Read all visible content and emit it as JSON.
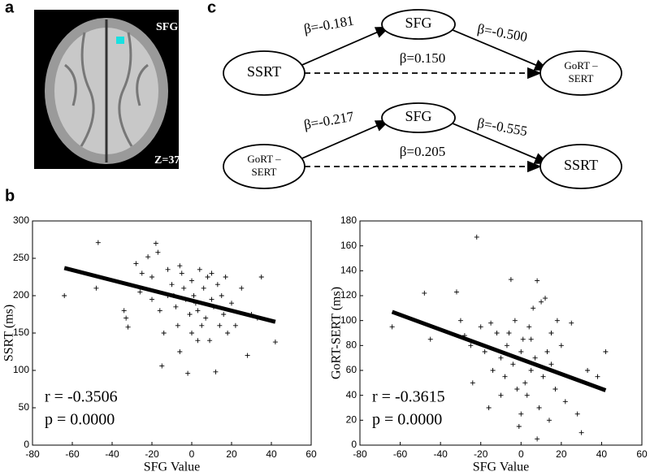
{
  "panel_labels": [
    "a",
    "b",
    "c"
  ],
  "brain": {
    "region": "SFG",
    "slice": "Z=37"
  },
  "diagrams": [
    {
      "nodes": [
        {
          "lines": [
            "SSRT"
          ]
        },
        {
          "lines": [
            "SFG"
          ]
        },
        {
          "lines": [
            "GoRT –",
            "SERT"
          ]
        }
      ],
      "edges": [
        "β=-0.181",
        "β=-0.500",
        "β=0.150"
      ]
    },
    {
      "nodes": [
        {
          "lines": [
            "GoRT –",
            "SERT"
          ]
        },
        {
          "lines": [
            "SFG"
          ]
        },
        {
          "lines": [
            "SSRT"
          ]
        }
      ],
      "edges": [
        "β=-0.217",
        "β=-0.555",
        "β=0.205"
      ]
    }
  ],
  "chart_data": [
    {
      "type": "scatter",
      "xlabel": "SFG Value",
      "ylabel": "SSRT (ms)",
      "color": "#000000",
      "xlim": [
        -80,
        60
      ],
      "ylim": [
        0,
        300
      ],
      "xticks": [
        -80,
        -60,
        -40,
        -20,
        0,
        20,
        40,
        60
      ],
      "yticks": [
        0,
        50,
        100,
        150,
        200,
        250,
        300
      ],
      "x": [
        -64,
        -47,
        -48,
        -34,
        -32,
        -33,
        -28,
        -25,
        -22,
        -20,
        -18,
        -17,
        -16,
        -15,
        -14,
        -12,
        -10,
        -9,
        -8,
        -7,
        -6,
        -5,
        -4,
        -3,
        -2,
        -1,
        0,
        0,
        1,
        2,
        3,
        4,
        5,
        6,
        7,
        8,
        9,
        10,
        11,
        12,
        13,
        14,
        15,
        16,
        18,
        20,
        22,
        25,
        28,
        30,
        33,
        35,
        42,
        -20,
        -26,
        -12,
        3,
        -6,
        10,
        17
      ],
      "values": [
        200,
        271,
        210,
        180,
        158,
        170,
        243,
        230,
        252,
        225,
        270,
        258,
        180,
        106,
        150,
        235,
        215,
        200,
        185,
        160,
        240,
        230,
        210,
        195,
        96,
        175,
        220,
        150,
        200,
        190,
        180,
        235,
        160,
        210,
        170,
        225,
        140,
        195,
        185,
        98,
        215,
        160,
        200,
        175,
        150,
        190,
        160,
        210,
        120,
        175,
        170,
        225,
        138,
        195,
        205,
        200,
        140,
        125,
        230,
        225
      ],
      "fit": {
        "x": [
          -64,
          42
        ],
        "y": [
          237,
          165
        ]
      },
      "annotations": [
        "r = -0.3506",
        "p = 0.0000"
      ]
    },
    {
      "type": "scatter",
      "xlabel": "SFG Value",
      "ylabel": "GoRT-SERT (ms)",
      "color": "#000000",
      "xlim": [
        -80,
        60
      ],
      "ylim": [
        0,
        180
      ],
      "xticks": [
        -80,
        -60,
        -40,
        -20,
        0,
        20,
        40,
        60
      ],
      "yticks": [
        0,
        20,
        40,
        60,
        80,
        100,
        120,
        140,
        160,
        180
      ],
      "x": [
        -64,
        -48,
        -45,
        -32,
        -30,
        -28,
        -25,
        -22,
        -20,
        -18,
        -15,
        -14,
        -12,
        -10,
        -8,
        -7,
        -5,
        -4,
        -3,
        -2,
        -1,
        0,
        1,
        2,
        3,
        4,
        5,
        6,
        7,
        8,
        9,
        10,
        11,
        12,
        13,
        14,
        15,
        17,
        18,
        20,
        22,
        25,
        28,
        30,
        33,
        38,
        42,
        -24,
        -10,
        0,
        5,
        -6,
        15,
        -16,
        8
      ],
      "values": [
        95,
        122,
        85,
        123,
        100,
        88,
        80,
        167,
        95,
        75,
        98,
        60,
        90,
        70,
        55,
        80,
        133,
        65,
        100,
        45,
        15,
        75,
        85,
        50,
        40,
        95,
        60,
        110,
        70,
        132,
        30,
        115,
        55,
        118,
        75,
        20,
        65,
        45,
        100,
        80,
        35,
        98,
        25,
        10,
        60,
        55,
        75,
        50,
        40,
        25,
        85,
        90,
        90,
        30,
        5
      ],
      "fit": {
        "x": [
          -64,
          42
        ],
        "y": [
          107,
          44
        ]
      },
      "annotations": [
        "r = -0.3615",
        "p = 0.0000"
      ]
    }
  ]
}
